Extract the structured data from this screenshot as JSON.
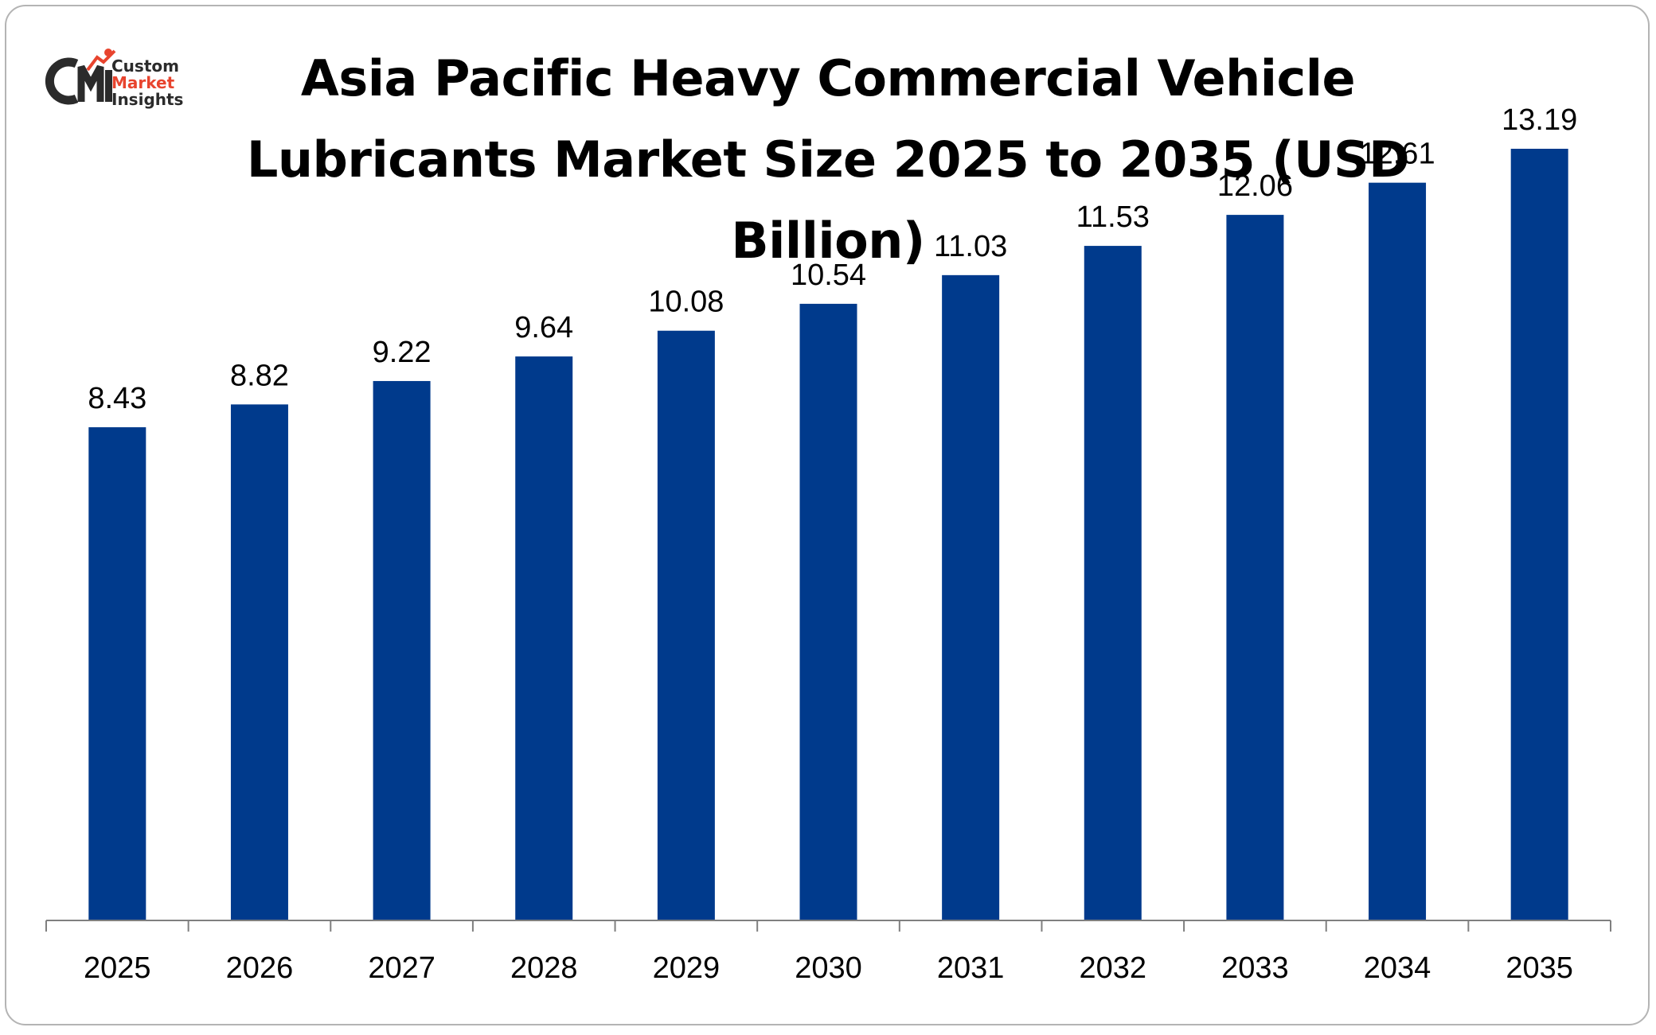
{
  "brand": {
    "logo_mark": "CMI",
    "line1": "Custom",
    "line2": "Market",
    "line3": "Insights",
    "accent_color": "#e8442e",
    "dark_color": "#2b2b2b"
  },
  "chart_data": {
    "type": "bar",
    "title": "Asia Pacific Heavy Commercial Vehicle Lubricants Market Size 2025 to 2035 (USD Billion)",
    "xlabel": "",
    "ylabel": "",
    "categories": [
      "2025",
      "2026",
      "2027",
      "2028",
      "2029",
      "2030",
      "2031",
      "2032",
      "2033",
      "2034",
      "2035"
    ],
    "values": [
      8.43,
      8.82,
      9.22,
      9.64,
      10.08,
      10.54,
      11.03,
      11.53,
      12.06,
      12.61,
      13.19
    ],
    "data_labels": [
      "8.43",
      "8.82",
      "9.22",
      "9.64",
      "10.08",
      "10.54",
      "11.03",
      "11.53",
      "12.06",
      "12.61",
      "13.19"
    ],
    "bar_color": "#003a8c",
    "grid": false,
    "legend": "none"
  }
}
